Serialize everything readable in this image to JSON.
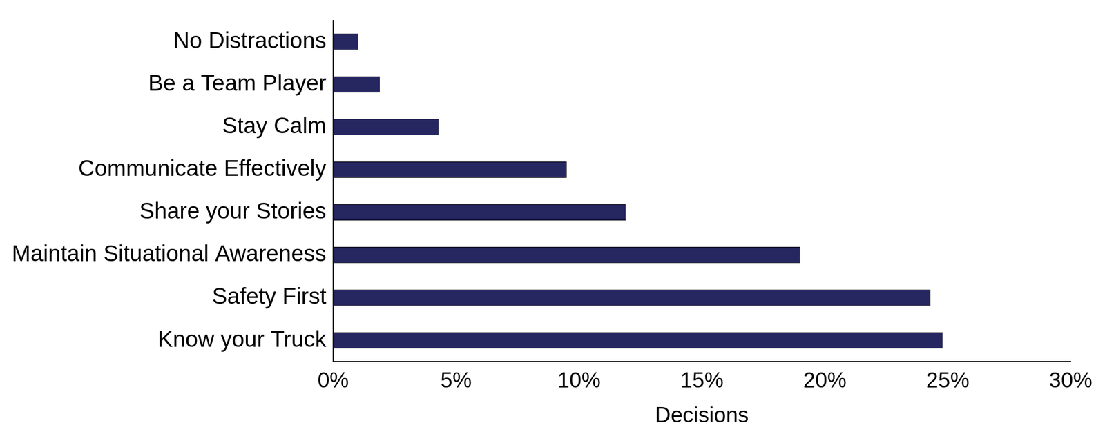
{
  "chart_data": {
    "type": "bar",
    "orientation": "horizontal",
    "categories": [
      "No Distractions",
      "Be a Team Player",
      "Stay Calm",
      "Communicate Effectively",
      "Share your Stories",
      "Maintain Situational Awareness",
      "Safety First",
      "Know your Truck"
    ],
    "values": [
      1.0,
      1.9,
      4.3,
      9.5,
      11.9,
      19.0,
      24.3,
      24.8
    ],
    "color": "#262660",
    "x_label": "Decisions",
    "xlim": [
      0,
      30
    ],
    "xticks": [
      {
        "value": 0,
        "label": "0%"
      },
      {
        "value": 5,
        "label": "5%"
      },
      {
        "value": 10,
        "label": "10%"
      },
      {
        "value": 15,
        "label": "15%"
      },
      {
        "value": 20,
        "label": "20%"
      },
      {
        "value": 25,
        "label": "25%"
      },
      {
        "value": 30,
        "label": "30%"
      }
    ],
    "grid": false
  }
}
